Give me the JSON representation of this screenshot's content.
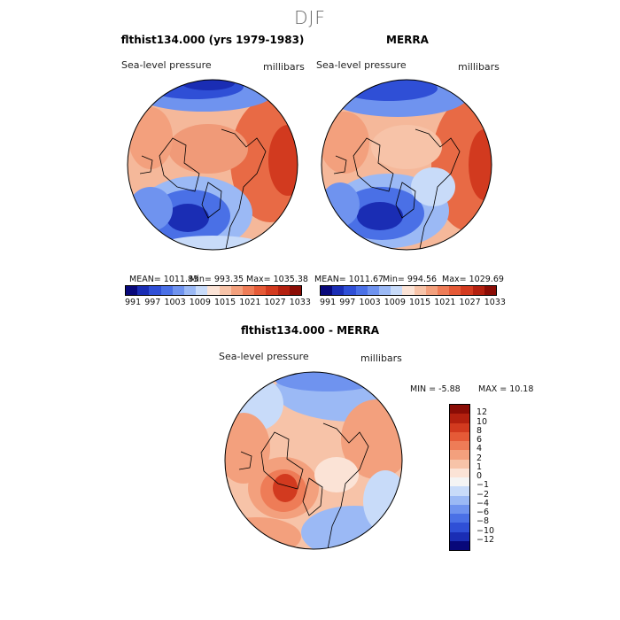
{
  "title": "DJF",
  "panels": [
    {
      "title": "flthist134.000 (yrs 1979-1983)",
      "variable": "Sea-level pressure",
      "units": "millibars",
      "stats": {
        "mean": "MEAN= 1011.83",
        "min": "Min= 993.35",
        "max": "Max= 1035.38"
      }
    },
    {
      "title": "MERRA",
      "variable": "Sea-level pressure",
      "units": "millibars",
      "stats": {
        "mean": "MEAN= 1011.67",
        "min": "Min= 994.56",
        "max": "Max= 1029.69"
      }
    },
    {
      "title": "flthist134.000 - MERRA",
      "variable": "Sea-level pressure",
      "units": "millibars",
      "stats": {
        "min": "MIN =   -5.88",
        "max": "MAX =   10.18"
      }
    }
  ],
  "colorbar_abs": {
    "colors": [
      "#08087a",
      "#1a2db4",
      "#2f4fd6",
      "#4a70e6",
      "#6f93ef",
      "#9bb9f5",
      "#c8dbf9",
      "#fbe3d6",
      "#f7c3a8",
      "#f3a07d",
      "#ee7c57",
      "#e55a37",
      "#d23a1f",
      "#b3200f",
      "#8a0c05"
    ],
    "tick_labels": [
      "991",
      "997",
      "1003",
      "1009",
      "1015",
      "1021",
      "1027",
      "1033"
    ]
  },
  "colorbar_diff": {
    "colors": [
      "#8a0c05",
      "#b3200f",
      "#d23a1f",
      "#e55a37",
      "#ee7c57",
      "#f3a07d",
      "#f7c3a8",
      "#fbe3d6",
      "#f4f4f4",
      "#c8dbf9",
      "#9bb9f5",
      "#6f93ef",
      "#4a70e6",
      "#2f4fd6",
      "#1a2db4",
      "#08087a"
    ],
    "tick_labels": [
      "12",
      "10",
      "8",
      "6",
      "4",
      "2",
      "1",
      "0",
      "−1",
      "−2",
      "−4",
      "−6",
      "−8",
      "−10",
      "−12"
    ]
  }
}
